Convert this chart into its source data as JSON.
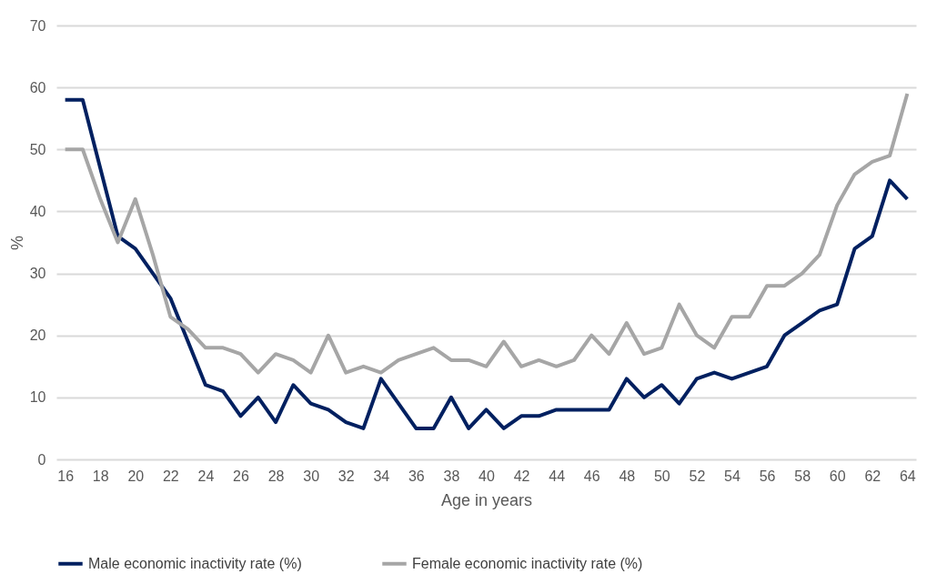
{
  "chart_data": {
    "type": "line",
    "xlabel": "Age in years",
    "ylabel": "%",
    "x": [
      16,
      17,
      18,
      19,
      20,
      21,
      22,
      23,
      24,
      25,
      26,
      27,
      28,
      29,
      30,
      31,
      32,
      33,
      34,
      35,
      36,
      37,
      38,
      39,
      40,
      41,
      42,
      43,
      44,
      45,
      46,
      47,
      48,
      49,
      50,
      51,
      52,
      53,
      54,
      55,
      56,
      57,
      58,
      59,
      60,
      61,
      62,
      63,
      64
    ],
    "series": [
      {
        "name": "Male economic inactivity rate (%)",
        "color": "#002060",
        "values": [
          58,
          58,
          47,
          36,
          34,
          30,
          26,
          19,
          12,
          11,
          7,
          10,
          6,
          12,
          9,
          8,
          6,
          5,
          13,
          9,
          5,
          5,
          10,
          5,
          8,
          5,
          7,
          7,
          8,
          8,
          8,
          8,
          13,
          10,
          12,
          9,
          13,
          14,
          13,
          14,
          15,
          20,
          22,
          24,
          25,
          34,
          36,
          45,
          42
        ]
      },
      {
        "name": "Female economic inactivity rate (%)",
        "color": "#a6a6a6",
        "values": [
          50,
          50,
          42,
          35,
          42,
          33,
          23,
          21,
          18,
          18,
          17,
          14,
          17,
          16,
          14,
          20,
          14,
          15,
          14,
          16,
          17,
          18,
          16,
          16,
          15,
          19,
          15,
          16,
          15,
          16,
          20,
          17,
          22,
          17,
          18,
          25,
          20,
          18,
          23,
          23,
          28,
          28,
          30,
          33,
          41,
          46,
          48,
          49,
          59
        ]
      }
    ],
    "xlim": [
      15.5,
      64.5
    ],
    "xticks": [
      16,
      18,
      20,
      22,
      24,
      26,
      28,
      30,
      32,
      34,
      36,
      38,
      40,
      42,
      44,
      46,
      48,
      50,
      52,
      54,
      56,
      58,
      60,
      62,
      64
    ],
    "ylim": [
      0,
      70
    ],
    "yticks": [
      0,
      10,
      20,
      30,
      40,
      50,
      60,
      70
    ],
    "grid": "y",
    "legend": "bottom",
    "marker": "none",
    "line_style": "solid"
  }
}
